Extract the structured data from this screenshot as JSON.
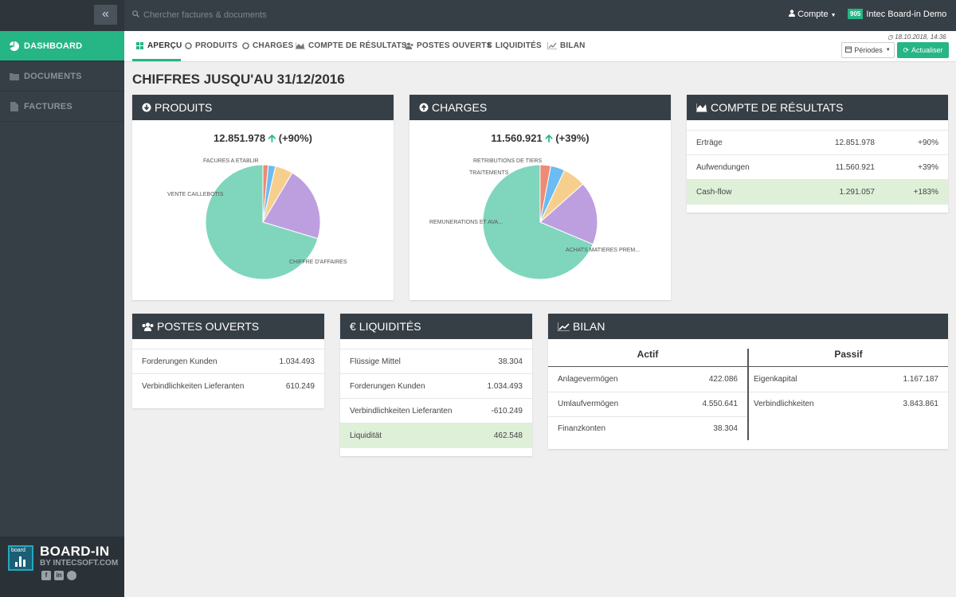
{
  "sidebar": {
    "collapse_icon": "double-chevron-left-icon",
    "items": [
      {
        "label": "DASHBOARD",
        "icon": "pie-chart-icon",
        "active": true
      },
      {
        "label": "DOCUMENTS",
        "icon": "folder-icon",
        "active": false
      },
      {
        "label": "FACTURES",
        "icon": "file-icon",
        "active": false
      }
    ],
    "brand": {
      "title": "BOARD-IN",
      "subtitle": "BY INTECSOFT.COM",
      "logo_text": "board"
    }
  },
  "topbar": {
    "search_placeholder": "Chercher factures & documents",
    "account_label": "Compte",
    "company_badge": "905",
    "company_name": "Intec Board-in Demo"
  },
  "tabs": [
    {
      "label": "APERÇU",
      "icon": "grid-icon",
      "active": true
    },
    {
      "label": "PRODUITS",
      "icon": "circle-icon"
    },
    {
      "label": "CHARGES",
      "icon": "circle-icon"
    },
    {
      "label": "COMPTE DE RÉSULTATS",
      "icon": "area-chart-icon"
    },
    {
      "label": "POSTES OUVERTS",
      "icon": "users-icon"
    },
    {
      "label": "LIQUIDITÉS",
      "icon": "euro-icon"
    },
    {
      "label": "BILAN",
      "icon": "line-chart-icon"
    }
  ],
  "toolbar": {
    "timestamp": "18.10.2018, 14:36",
    "periodes_label": "Périodes",
    "actualiser_label": "Actualiser"
  },
  "page_title": "CHIFFRES JUSQU'AU 31/12/2016",
  "colors": {
    "accent": "#26b584",
    "dark": "#373f46",
    "highlight": "#dff0d8"
  },
  "produits": {
    "title": "PRODUITS",
    "total": "12.851.978",
    "change": "(+90%)",
    "labels": [
      "FACURES A ETABLIR",
      "VENTE CAILLEBOTIS",
      "CHIFFRE D'AFFAIRES"
    ]
  },
  "charges": {
    "title": "CHARGES",
    "total": "11.560.921",
    "change": "(+39%)",
    "labels": [
      "RETRIBUTIONS DE TIERS",
      "TRAITEMENTS",
      "REMUNERATIONS ET AVA...",
      "ACHATS MATIERES PREM..."
    ]
  },
  "chart_data": [
    {
      "type": "pie",
      "title": "PRODUITS",
      "categories": [
        "CHIFFRE D'AFFAIRES",
        "VENTE CAILLEBOTIS",
        "",
        "FACURES A ETABLIR",
        ""
      ],
      "values": [
        70,
        21,
        5,
        2,
        1.5
      ],
      "colors": [
        "#7fd6bd",
        "#bd9fdf",
        "#f7cf8d",
        "#6cbbf2",
        "#ef8a74"
      ]
    },
    {
      "type": "pie",
      "title": "CHARGES",
      "categories": [
        "ACHATS MATIERES PREM...",
        "REMUNERATIONS ET AVA...",
        "TRAITEMENTS",
        "RETRIBUTIONS DE TIERS",
        ""
      ],
      "values": [
        69,
        18,
        6.5,
        4,
        3
      ],
      "colors": [
        "#7fd6bd",
        "#bd9fdf",
        "#f7cf8d",
        "#6cbbf2",
        "#ef8a74"
      ]
    }
  ],
  "compte": {
    "title": "COMPTE DE RÉSULTATS",
    "rows": [
      {
        "label": "Erträge",
        "value": "12.851.978",
        "pct": "+90%"
      },
      {
        "label": "Aufwendungen",
        "value": "11.560.921",
        "pct": "+39%"
      },
      {
        "label": "Cash-flow",
        "value": "1.291.057",
        "pct": "+183%"
      }
    ]
  },
  "postes": {
    "title": "POSTES OUVERTS",
    "rows": [
      {
        "label": "Forderungen Kunden",
        "value": "1.034.493"
      },
      {
        "label": "Verbindlichkeiten Lieferanten",
        "value": "610.249"
      }
    ]
  },
  "liquidites": {
    "title": "LIQUIDITÉS",
    "rows": [
      {
        "label": "Flüssige Mittel",
        "value": "38.304"
      },
      {
        "label": "Forderungen Kunden",
        "value": "1.034.493"
      },
      {
        "label": "Verbindlichkeiten Lieferanten",
        "value": "-610.249"
      },
      {
        "label": "Liquidität",
        "value": "462.548"
      }
    ]
  },
  "bilan": {
    "title": "BILAN",
    "actif_label": "Actif",
    "passif_label": "Passif",
    "actif": [
      {
        "label": "Anlagevermögen",
        "value": "422.086"
      },
      {
        "label": "Umlaufvermögen",
        "value": "4.550.641"
      },
      {
        "label": "Finanzkonten",
        "value": "38.304"
      }
    ],
    "passif": [
      {
        "label": "Eigenkapital",
        "value": "1.167.187"
      },
      {
        "label": "Verbindlichkeiten",
        "value": "3.843.861"
      }
    ]
  }
}
